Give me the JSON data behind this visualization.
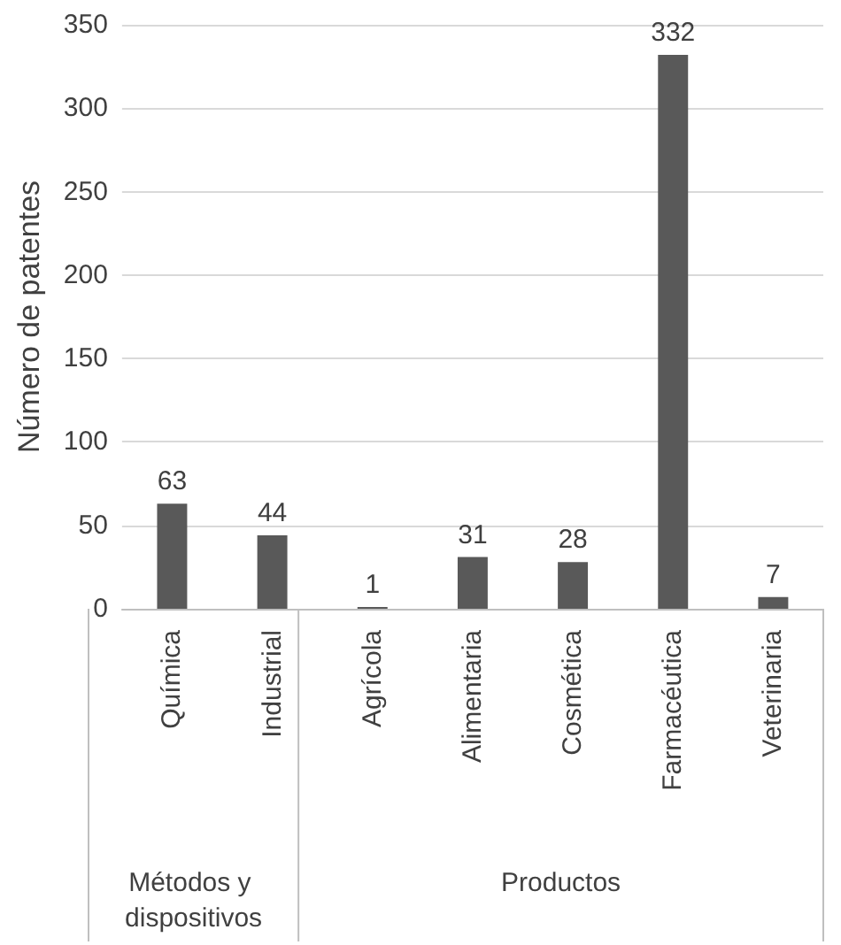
{
  "chart_data": {
    "type": "bar",
    "ylabel": "Número de patentes",
    "categories": [
      "Química",
      "Industrial",
      "Agrícola",
      "Alimentaria",
      "Cosmética",
      "Farmacéutica",
      "Veterinaria"
    ],
    "values": [
      63,
      44,
      1,
      31,
      28,
      332,
      7
    ],
    "color": "#595959",
    "ylim": [
      0,
      350
    ],
    "yticks": [
      0,
      50,
      100,
      150,
      200,
      250,
      300,
      350
    ],
    "grid": "y",
    "data_labels": true,
    "annotations": [
      "Métodos y dispositivos",
      "Productos"
    ]
  }
}
